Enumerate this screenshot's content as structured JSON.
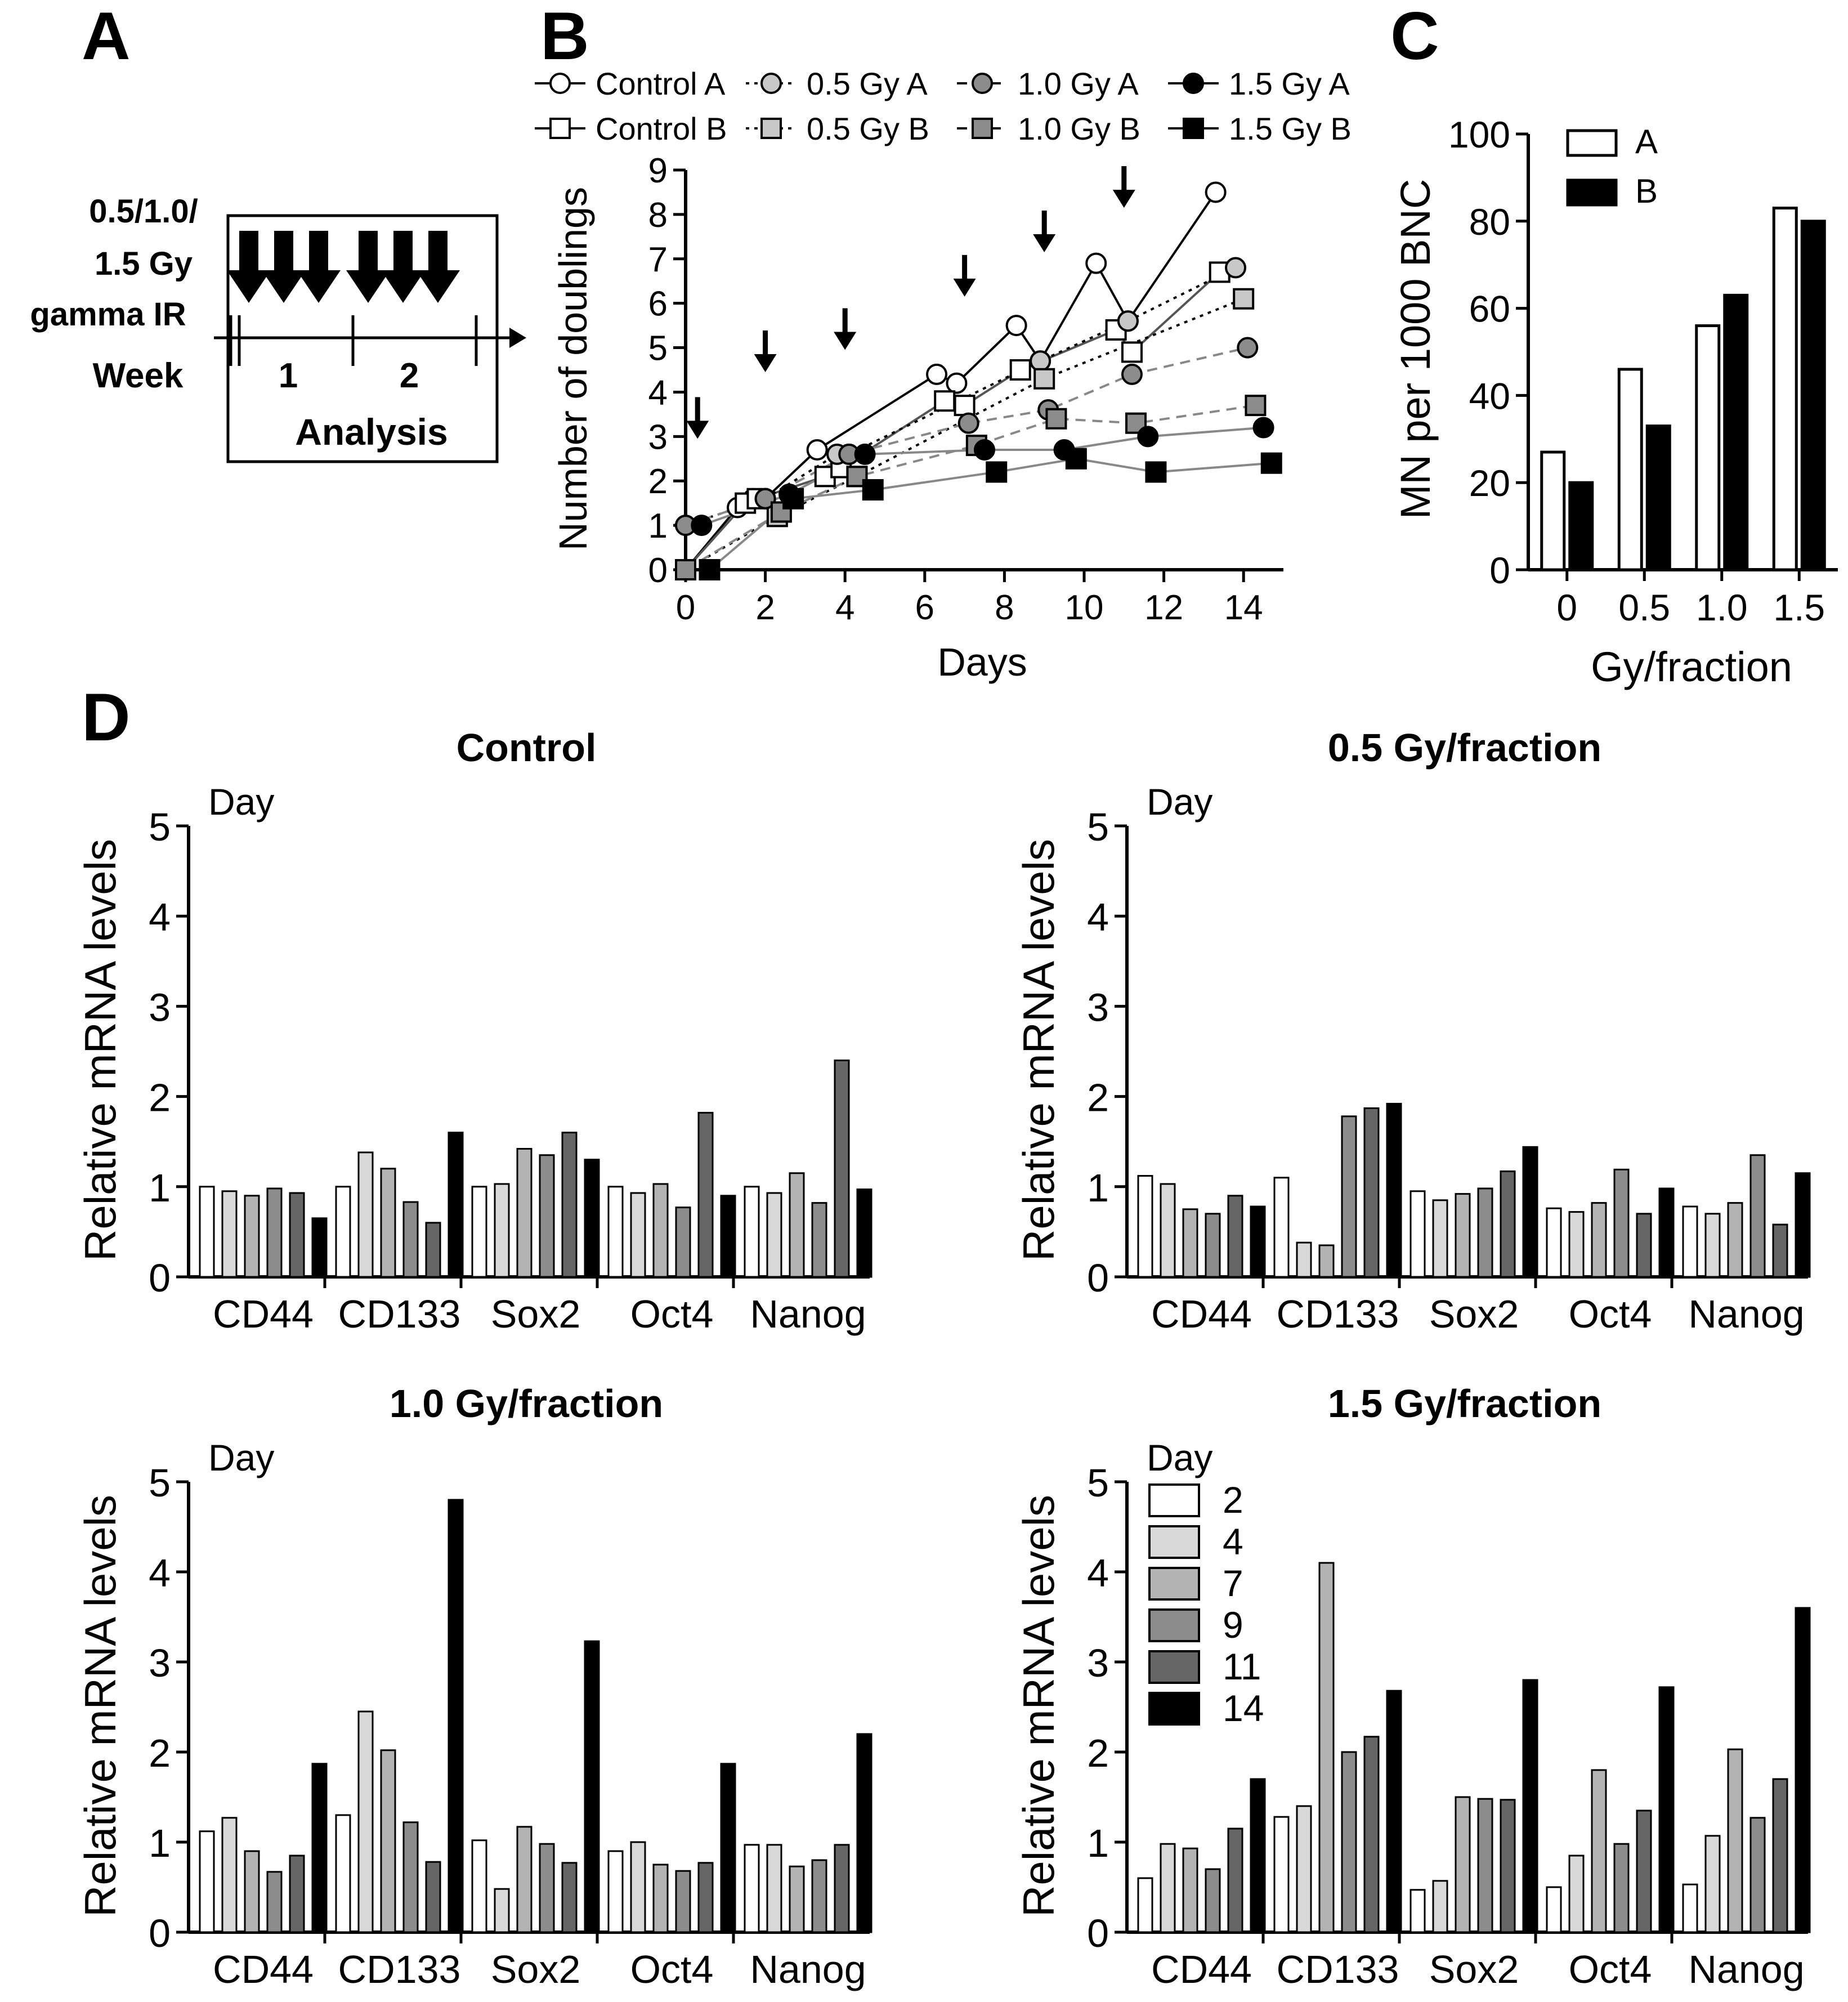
{
  "panels": {
    "A": {
      "letter": "A",
      "dose_lines": [
        "0.5/1.0/",
        "1.5 Gy",
        "gamma IR"
      ],
      "week_label": "Week",
      "week_numbers": [
        "1",
        "2"
      ],
      "analysis_label": "Analysis"
    },
    "B": {
      "letter": "B"
    },
    "C": {
      "letter": "C"
    },
    "D": {
      "letter": "D"
    }
  },
  "chart_data": [
    {
      "id": "B",
      "type": "line",
      "title": "",
      "xlabel": "Days",
      "ylabel": "Number of doublings",
      "xlim": [
        0,
        15
      ],
      "ylim": [
        0,
        9
      ],
      "xticks": [
        0,
        2,
        4,
        6,
        8,
        10,
        12,
        14
      ],
      "yticks": [
        0,
        1,
        2,
        3,
        4,
        5,
        6,
        7,
        8,
        9
      ],
      "arrows_at_days": [
        0.3,
        2.0,
        4.0,
        7.0,
        9.0,
        11.0
      ],
      "legend_position": "top",
      "series": [
        {
          "name": "Control A",
          "marker": "circle",
          "fill": "#ffffff",
          "line": "solid",
          "line_color": "#000000",
          "x": [
            0,
            1.3,
            1.7,
            2.0,
            3.3,
            6.3,
            6.8,
            8.3,
            8.9,
            10.3,
            11.1,
            13.3
          ],
          "y": [
            0,
            1.4,
            1.6,
            1.6,
            2.7,
            4.4,
            4.2,
            5.5,
            4.7,
            6.9,
            5.6,
            8.5
          ]
        },
        {
          "name": "Control B",
          "marker": "square",
          "fill": "#ffffff",
          "line": "solid",
          "line_color": "#555555",
          "x": [
            0,
            1.5,
            1.8,
            3.5,
            3.9,
            6.5,
            7.0,
            8.4,
            10.8,
            11.2,
            13.4
          ],
          "y": [
            0,
            1.5,
            1.6,
            2.1,
            2.3,
            3.8,
            3.7,
            4.5,
            5.4,
            4.9,
            6.7
          ]
        },
        {
          "name": "0.5 Gy A",
          "marker": "circle",
          "fill": "#c8c8c8",
          "line": "dotted",
          "line_color": "#000000",
          "x": [
            0,
            2.0,
            3.8,
            4.1,
            8.9,
            11.1,
            13.8
          ],
          "y": [
            1.0,
            1.6,
            2.6,
            2.6,
            4.7,
            5.6,
            6.8
          ]
        },
        {
          "name": "0.5 Gy B",
          "marker": "square",
          "fill": "#c8c8c8",
          "line": "dotted",
          "line_color": "#000000",
          "x": [
            0,
            2.3,
            4.3,
            9.0,
            14.0
          ],
          "y": [
            0,
            1.2,
            2.1,
            4.3,
            6.1
          ]
        },
        {
          "name": "1.0 Gy A",
          "marker": "circle",
          "fill": "#8c8c8c",
          "line": "dashed",
          "line_color": "#888888",
          "x": [
            0,
            2.0,
            4.1,
            7.1,
            9.1,
            11.2,
            14.1
          ],
          "y": [
            1.0,
            1.6,
            2.6,
            3.3,
            3.6,
            4.4,
            5.0
          ]
        },
        {
          "name": "1.0 Gy B",
          "marker": "square",
          "fill": "#8c8c8c",
          "line": "dashed",
          "line_color": "#888888",
          "x": [
            0,
            2.4,
            4.3,
            7.3,
            9.3,
            11.3,
            14.3
          ],
          "y": [
            0,
            1.3,
            2.1,
            2.8,
            3.4,
            3.3,
            3.7
          ]
        },
        {
          "name": "1.5 Gy A",
          "marker": "circle",
          "fill": "#000000",
          "line": "solid",
          "line_color": "#888888",
          "x": [
            0.4,
            2.6,
            4.5,
            7.5,
            9.5,
            11.6,
            14.5
          ],
          "y": [
            1.0,
            1.7,
            2.6,
            2.7,
            2.7,
            3.0,
            3.2
          ]
        },
        {
          "name": "1.5 Gy B",
          "marker": "square",
          "fill": "#000000",
          "line": "solid",
          "line_color": "#888888",
          "x": [
            0.6,
            2.7,
            4.7,
            7.8,
            9.8,
            11.8,
            14.7
          ],
          "y": [
            0,
            1.6,
            1.8,
            2.2,
            2.5,
            2.2,
            2.4
          ]
        }
      ]
    },
    {
      "id": "C",
      "type": "bar",
      "title": "",
      "xlabel": "Gy/fraction",
      "ylabel": "MN per 1000 BNC",
      "categories": [
        "0",
        "0.5",
        "1.0",
        "1.5"
      ],
      "ylim": [
        0,
        100
      ],
      "yticks": [
        0,
        20,
        40,
        60,
        80,
        100
      ],
      "legend_position": "top-left",
      "series": [
        {
          "name": "A",
          "color": "#ffffff",
          "values": [
            27,
            46,
            56,
            83
          ]
        },
        {
          "name": "B",
          "color": "#000000",
          "values": [
            20,
            33,
            63,
            80
          ]
        }
      ]
    },
    {
      "id": "D-control",
      "type": "bar",
      "title": "Control",
      "legend_title": "Day",
      "ylabel": "Relative mRNA levels",
      "categories": [
        "CD44",
        "CD133",
        "Sox2",
        "Oct4",
        "Nanog"
      ],
      "ylim": [
        0,
        5
      ],
      "yticks": [
        0,
        1,
        2,
        3,
        4,
        5
      ],
      "series": [
        {
          "name": "2",
          "color": "#ffffff",
          "values": [
            1.0,
            1.0,
            1.0,
            1.0,
            1.0
          ]
        },
        {
          "name": "4",
          "color": "#d9d9d9",
          "values": [
            0.95,
            1.38,
            1.03,
            0.93,
            0.93
          ]
        },
        {
          "name": "7",
          "color": "#b3b3b3",
          "values": [
            0.9,
            1.2,
            1.42,
            1.03,
            1.15
          ]
        },
        {
          "name": "9",
          "color": "#8c8c8c",
          "values": [
            0.98,
            0.83,
            1.35,
            0.77,
            0.82
          ]
        },
        {
          "name": "11",
          "color": "#666666",
          "values": [
            0.93,
            0.6,
            1.6,
            1.82,
            2.4
          ]
        },
        {
          "name": "14",
          "color": "#000000",
          "values": [
            0.65,
            1.6,
            1.3,
            0.9,
            0.97
          ]
        }
      ]
    },
    {
      "id": "D-0.5",
      "type": "bar",
      "title": "0.5 Gy/fraction",
      "legend_title": "Day",
      "ylabel": "Relative mRNA levels",
      "categories": [
        "CD44",
        "CD133",
        "Sox2",
        "Oct4",
        "Nanog"
      ],
      "ylim": [
        0,
        5
      ],
      "yticks": [
        0,
        1,
        2,
        3,
        4,
        5
      ],
      "series": [
        {
          "name": "2",
          "color": "#ffffff",
          "values": [
            1.12,
            1.1,
            0.95,
            0.76,
            0.78
          ]
        },
        {
          "name": "4",
          "color": "#d9d9d9",
          "values": [
            1.03,
            0.38,
            0.85,
            0.72,
            0.7
          ]
        },
        {
          "name": "7",
          "color": "#b3b3b3",
          "values": [
            0.75,
            0.35,
            0.92,
            0.82,
            0.82
          ]
        },
        {
          "name": "9",
          "color": "#8c8c8c",
          "values": [
            0.7,
            1.78,
            0.98,
            1.19,
            1.35
          ]
        },
        {
          "name": "11",
          "color": "#666666",
          "values": [
            0.9,
            1.87,
            1.17,
            0.7,
            0.58
          ]
        },
        {
          "name": "14",
          "color": "#000000",
          "values": [
            0.78,
            1.92,
            1.44,
            0.98,
            1.15
          ]
        }
      ]
    },
    {
      "id": "D-1.0",
      "type": "bar",
      "title": "1.0 Gy/fraction",
      "legend_title": "Day",
      "ylabel": "Relative mRNA levels",
      "categories": [
        "CD44",
        "CD133",
        "Sox2",
        "Oct4",
        "Nanog"
      ],
      "ylim": [
        0,
        5
      ],
      "yticks": [
        0,
        1,
        2,
        3,
        4,
        5
      ],
      "series": [
        {
          "name": "2",
          "color": "#ffffff",
          "values": [
            1.12,
            1.3,
            1.02,
            0.9,
            0.97
          ]
        },
        {
          "name": "4",
          "color": "#d9d9d9",
          "values": [
            1.27,
            2.45,
            0.48,
            1.0,
            0.97
          ]
        },
        {
          "name": "7",
          "color": "#b3b3b3",
          "values": [
            0.9,
            2.02,
            1.17,
            0.75,
            0.73
          ]
        },
        {
          "name": "9",
          "color": "#8c8c8c",
          "values": [
            0.67,
            1.22,
            0.98,
            0.68,
            0.8
          ]
        },
        {
          "name": "11",
          "color": "#666666",
          "values": [
            0.85,
            0.78,
            0.77,
            0.77,
            0.97
          ]
        },
        {
          "name": "14",
          "color": "#000000",
          "values": [
            1.87,
            4.8,
            3.23,
            1.87,
            2.2
          ]
        }
      ]
    },
    {
      "id": "D-1.5",
      "type": "bar",
      "title": "1.5 Gy/fraction",
      "legend_title": "Day",
      "ylabel": "Relative mRNA levels",
      "categories": [
        "CD44",
        "CD133",
        "Sox2",
        "Oct4",
        "Nanog"
      ],
      "ylim": [
        0,
        5
      ],
      "yticks": [
        0,
        1,
        2,
        3,
        4,
        5
      ],
      "show_legend": true,
      "legend_position": "top-left",
      "series": [
        {
          "name": "2",
          "color": "#ffffff",
          "values": [
            0.6,
            1.28,
            0.47,
            0.5,
            0.53
          ]
        },
        {
          "name": "4",
          "color": "#d9d9d9",
          "values": [
            0.98,
            1.4,
            0.57,
            0.85,
            1.07
          ]
        },
        {
          "name": "7",
          "color": "#b3b3b3",
          "values": [
            0.93,
            4.1,
            1.5,
            1.8,
            2.03
          ]
        },
        {
          "name": "9",
          "color": "#8c8c8c",
          "values": [
            0.7,
            2.0,
            1.48,
            0.98,
            1.27
          ]
        },
        {
          "name": "11",
          "color": "#666666",
          "values": [
            1.15,
            2.17,
            1.47,
            1.35,
            1.7
          ]
        },
        {
          "name": "14",
          "color": "#000000",
          "values": [
            1.7,
            2.68,
            2.8,
            2.72,
            3.6
          ]
        }
      ]
    }
  ]
}
